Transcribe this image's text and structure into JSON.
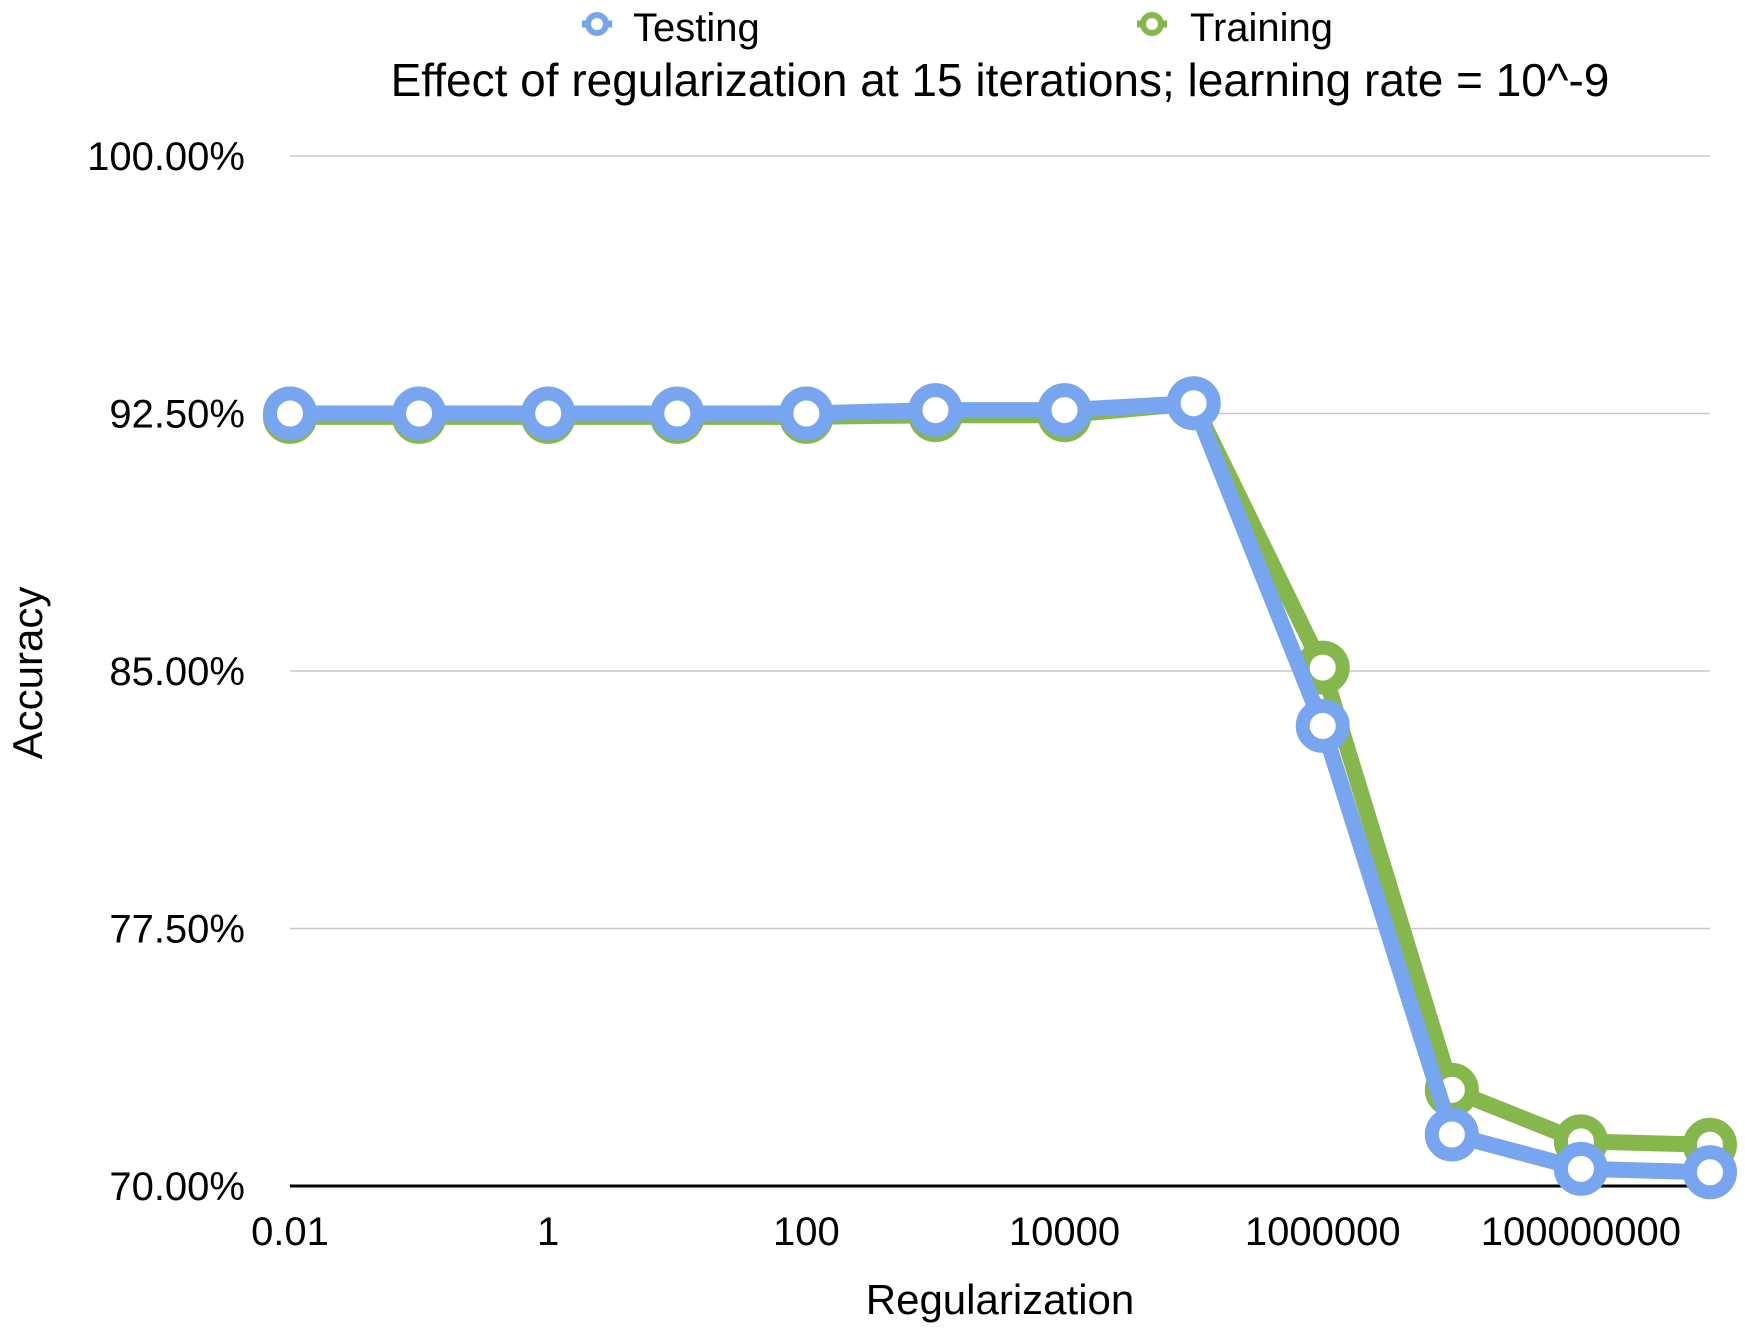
{
  "chart_data": {
    "type": "line",
    "title": "Effect of regularization at 15 iterations; learning rate = 10^-9",
    "xlabel": "Regularization",
    "ylabel": "Accuracy",
    "x_scale": "log",
    "x": [
      0.01,
      0.1,
      1,
      10,
      100,
      1000,
      10000,
      100000,
      1000000,
      10000000,
      100000000,
      1000000000
    ],
    "x_tick_labels": [
      "0.01",
      "1",
      "100",
      "10000",
      "1000000",
      "100000000"
    ],
    "y_tick_labels": [
      "100.00%",
      "92.50%",
      "85.00%",
      "77.50%",
      "70.00%"
    ],
    "ylim": [
      70,
      100
    ],
    "y_ticks": [
      100,
      92.5,
      85,
      77.5,
      70
    ],
    "grid": true,
    "legend_position": "top",
    "series": [
      {
        "name": "Testing",
        "color": "#77a5ef",
        "values": [
          92.5,
          92.5,
          92.5,
          92.5,
          92.5,
          92.6,
          92.6,
          92.8,
          83.4,
          71.5,
          70.5,
          70.4
        ]
      },
      {
        "name": "Training",
        "color": "#86b74c",
        "values": [
          92.4,
          92.4,
          92.4,
          92.4,
          92.4,
          92.45,
          92.45,
          92.8,
          85.1,
          72.8,
          71.3,
          71.2
        ]
      }
    ]
  }
}
